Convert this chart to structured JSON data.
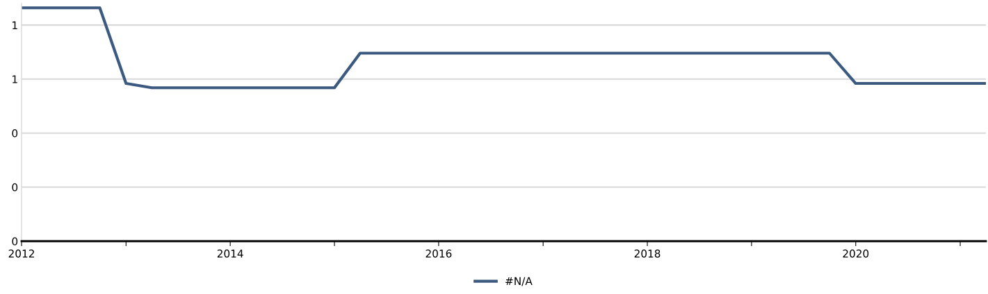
{
  "chart_data": {
    "type": "line",
    "x": [
      "2012-01",
      "2012-10",
      "2013-01",
      "2013-04",
      "2015-01",
      "2015-04",
      "2019-10",
      "2020-01",
      "2021-04"
    ],
    "series": [
      {
        "name": "#N/A",
        "color": "#3c5a80",
        "values": [
          1.08,
          1.08,
          0.73,
          0.71,
          0.71,
          0.87,
          0.87,
          0.73,
          0.73
        ]
      }
    ],
    "xlim": [
      "2012-01",
      "2021-04"
    ],
    "xticks": [
      {
        "value": "2012-01",
        "label": "2012"
      },
      {
        "value": "2013-01",
        "label": null
      },
      {
        "value": "2014-01",
        "label": "2014"
      },
      {
        "value": "2015-01",
        "label": null
      },
      {
        "value": "2016-01",
        "label": "2016"
      },
      {
        "value": "2017-01",
        "label": null
      },
      {
        "value": "2018-01",
        "label": "2018"
      },
      {
        "value": "2019-01",
        "label": null
      },
      {
        "value": "2020-01",
        "label": "2020"
      },
      {
        "value": "2021-01",
        "label": null
      }
    ],
    "yticks": [
      {
        "value": 0,
        "label": "0"
      },
      {
        "value": 0.25,
        "label": "0"
      },
      {
        "value": 0.5,
        "label": "0"
      },
      {
        "value": 0.75,
        "label": "1"
      },
      {
        "value": 1.0,
        "label": "1"
      }
    ],
    "ylim": [
      0,
      1.1
    ],
    "grid": "y",
    "legend": "bottom",
    "marker": "none",
    "line_style": "solid"
  }
}
